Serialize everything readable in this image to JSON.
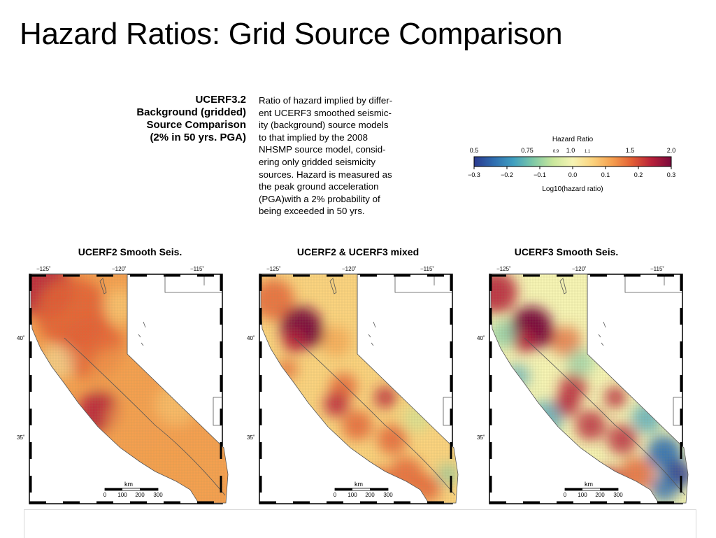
{
  "slide": {
    "title": "Hazard Ratios: Grid Source Comparison"
  },
  "figure": {
    "title_lines": [
      "UCERF3.2",
      "Background (gridded)",
      "Source Comparison",
      "(2% in 50 yrs. PGA)"
    ],
    "description_lines": [
      "Ratio of hazard implied by differ-",
      "ent UCERF3 smoothed seismic-",
      "ity (background) source models",
      "to that implied by the 2008",
      "NHSMP source model, consid-",
      "ering only gridded seismicity",
      "sources. Hazard is measured as",
      "the peak ground acceleration",
      "(PGA)with a 2% probability of",
      "being exceeded in 50 yrs."
    ]
  },
  "colorbar": {
    "title": "Hazard Ratio",
    "top_ticks": [
      "0.5",
      "0.75",
      "0.9",
      "1.0",
      "1.1",
      "1.5",
      "2.0"
    ],
    "bottom_ticks": [
      "−0.3",
      "−0.2",
      "−0.1",
      "0.0",
      "0.1",
      "0.2",
      "0.3"
    ],
    "label": "Log10(hazard ratio)",
    "colors": [
      "#2b3a8f",
      "#2f6db0",
      "#3f9fc0",
      "#7ec9a6",
      "#c9e79c",
      "#f6f4b4",
      "#fbd37e",
      "#f59f4f",
      "#e35f34",
      "#b8213a",
      "#7a0a3c"
    ]
  },
  "maps": [
    {
      "title": "UCERF2 Smooth Seis.",
      "variant": "smooth2"
    },
    {
      "title": "UCERF2 & UCERF3 mixed",
      "variant": "mixed"
    },
    {
      "title": "UCERF3 Smooth Seis.",
      "variant": "smooth3"
    }
  ],
  "map_axes": {
    "lon_labels": [
      "−125˚",
      "−120˚",
      "−115˚"
    ],
    "lat_labels": [
      "40˚",
      "35˚"
    ],
    "scale_label": "km",
    "scale_ticks": [
      "0",
      "100",
      "200",
      "300"
    ]
  }
}
